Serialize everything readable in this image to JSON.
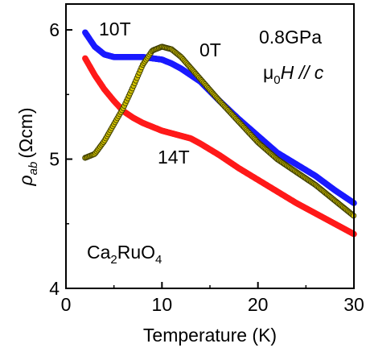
{
  "chart_data": {
    "type": "scatter",
    "xlabel": "Temperature (K)",
    "ylabel": {
      "symbol": "ρ",
      "subscript": "ab",
      "unit": "(Ωcm)"
    },
    "xlim": [
      0,
      30
    ],
    "ylim": [
      4,
      6.2
    ],
    "xticks": [
      "0",
      "10",
      "20",
      "30"
    ],
    "yticks": [
      "4",
      "5",
      "6"
    ],
    "annotations": {
      "pressure": "0.8GPa",
      "field_dir": {
        "mu": "μ",
        "mu_sub": "0",
        "H": "H",
        "rest": " // c"
      },
      "compound": {
        "p1": "Ca",
        "s1": "2",
        "p2": "RuO",
        "s2": "4"
      }
    },
    "series": [
      {
        "name": "0T",
        "color": "#d4c400",
        "edge": "#3a3a00",
        "x": [
          2,
          3,
          4,
          5,
          6,
          7,
          8,
          9,
          10,
          11,
          12,
          14,
          16,
          18,
          20,
          22,
          24,
          26,
          28,
          30
        ],
        "y": [
          5.01,
          5.04,
          5.14,
          5.27,
          5.4,
          5.56,
          5.73,
          5.84,
          5.87,
          5.85,
          5.79,
          5.62,
          5.45,
          5.29,
          5.13,
          5.0,
          4.9,
          4.8,
          4.68,
          4.56
        ]
      },
      {
        "name": "10T",
        "color": "#1a1aff",
        "x": [
          2,
          3,
          4,
          5,
          6,
          7,
          8,
          9,
          10,
          11,
          12,
          14,
          16,
          18,
          20,
          22,
          24,
          26,
          28,
          30
        ],
        "y": [
          5.98,
          5.87,
          5.81,
          5.79,
          5.79,
          5.79,
          5.79,
          5.78,
          5.77,
          5.74,
          5.7,
          5.6,
          5.45,
          5.31,
          5.18,
          5.05,
          4.96,
          4.87,
          4.76,
          4.66
        ]
      },
      {
        "name": "14T",
        "color": "#ff1a1a",
        "x": [
          2,
          3,
          4,
          5,
          6,
          7,
          8,
          9,
          10,
          11,
          12,
          13,
          14,
          16,
          18,
          20,
          22,
          24,
          26,
          28,
          30
        ],
        "y": [
          5.78,
          5.65,
          5.54,
          5.45,
          5.37,
          5.32,
          5.28,
          5.25,
          5.22,
          5.2,
          5.18,
          5.16,
          5.12,
          5.03,
          4.93,
          4.84,
          4.75,
          4.66,
          4.58,
          4.5,
          4.42
        ]
      }
    ]
  }
}
